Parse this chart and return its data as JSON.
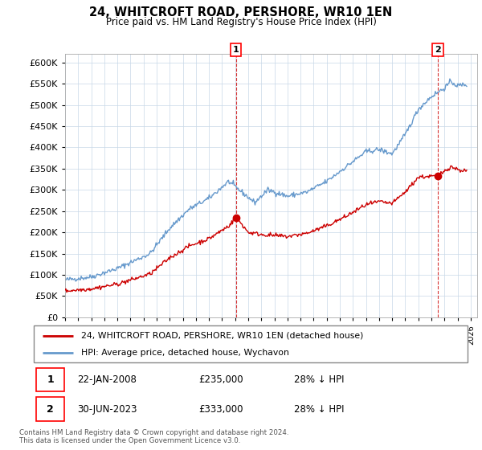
{
  "title": "24, WHITCROFT ROAD, PERSHORE, WR10 1EN",
  "subtitle": "Price paid vs. HM Land Registry's House Price Index (HPI)",
  "legend_line1": "24, WHITCROFT ROAD, PERSHORE, WR10 1EN (detached house)",
  "legend_line2": "HPI: Average price, detached house, Wychavon",
  "transaction1_date": "22-JAN-2008",
  "transaction1_price": "£235,000",
  "transaction1_hpi": "28% ↓ HPI",
  "transaction1_x": 2008.06,
  "transaction1_y": 235000,
  "transaction2_date": "30-JUN-2023",
  "transaction2_price": "£333,000",
  "transaction2_hpi": "28% ↓ HPI",
  "transaction2_x": 2023.5,
  "transaction2_y": 333000,
  "footer": "Contains HM Land Registry data © Crown copyright and database right 2024.\nThis data is licensed under the Open Government Licence v3.0.",
  "red_color": "#cc0000",
  "blue_color": "#6699cc",
  "ylim": [
    0,
    620000
  ],
  "yticks": [
    0,
    50000,
    100000,
    150000,
    200000,
    250000,
    300000,
    350000,
    400000,
    450000,
    500000,
    550000,
    600000
  ],
  "xlim_start": 1995.0,
  "xlim_end": 2026.5,
  "blue_anchors_x": [
    1995.0,
    1997.0,
    1999.0,
    2001.5,
    2003.0,
    2004.5,
    2006.0,
    2007.5,
    2008.5,
    2009.5,
    2010.5,
    2012.0,
    2013.5,
    2015.0,
    2016.5,
    2018.0,
    2019.0,
    2020.0,
    2021.0,
    2022.0,
    2023.0,
    2024.0,
    2024.5,
    2025.0,
    2025.5
  ],
  "blue_anchors_y": [
    88000,
    95000,
    115000,
    150000,
    210000,
    255000,
    280000,
    320000,
    295000,
    270000,
    300000,
    285000,
    295000,
    320000,
    355000,
    390000,
    395000,
    385000,
    430000,
    490000,
    520000,
    540000,
    555000,
    545000,
    548000
  ],
  "red_anchors_x": [
    1995.0,
    1997.0,
    1999.0,
    2001.5,
    2003.0,
    2004.5,
    2006.0,
    2007.5,
    2008.1,
    2009.0,
    2010.0,
    2012.0,
    2013.5,
    2015.0,
    2016.5,
    2018.0,
    2019.0,
    2020.0,
    2021.0,
    2022.0,
    2023.5,
    2024.0,
    2024.5,
    2025.0,
    2025.5
  ],
  "red_anchors_y": [
    62000,
    67000,
    78000,
    102000,
    140000,
    168000,
    185000,
    215000,
    235000,
    200000,
    195000,
    190000,
    198000,
    215000,
    238000,
    265000,
    272000,
    268000,
    295000,
    330000,
    333000,
    345000,
    355000,
    348000,
    345000
  ],
  "noise_seed": 42,
  "blue_noise_std": 3000,
  "red_noise_std": 2500
}
